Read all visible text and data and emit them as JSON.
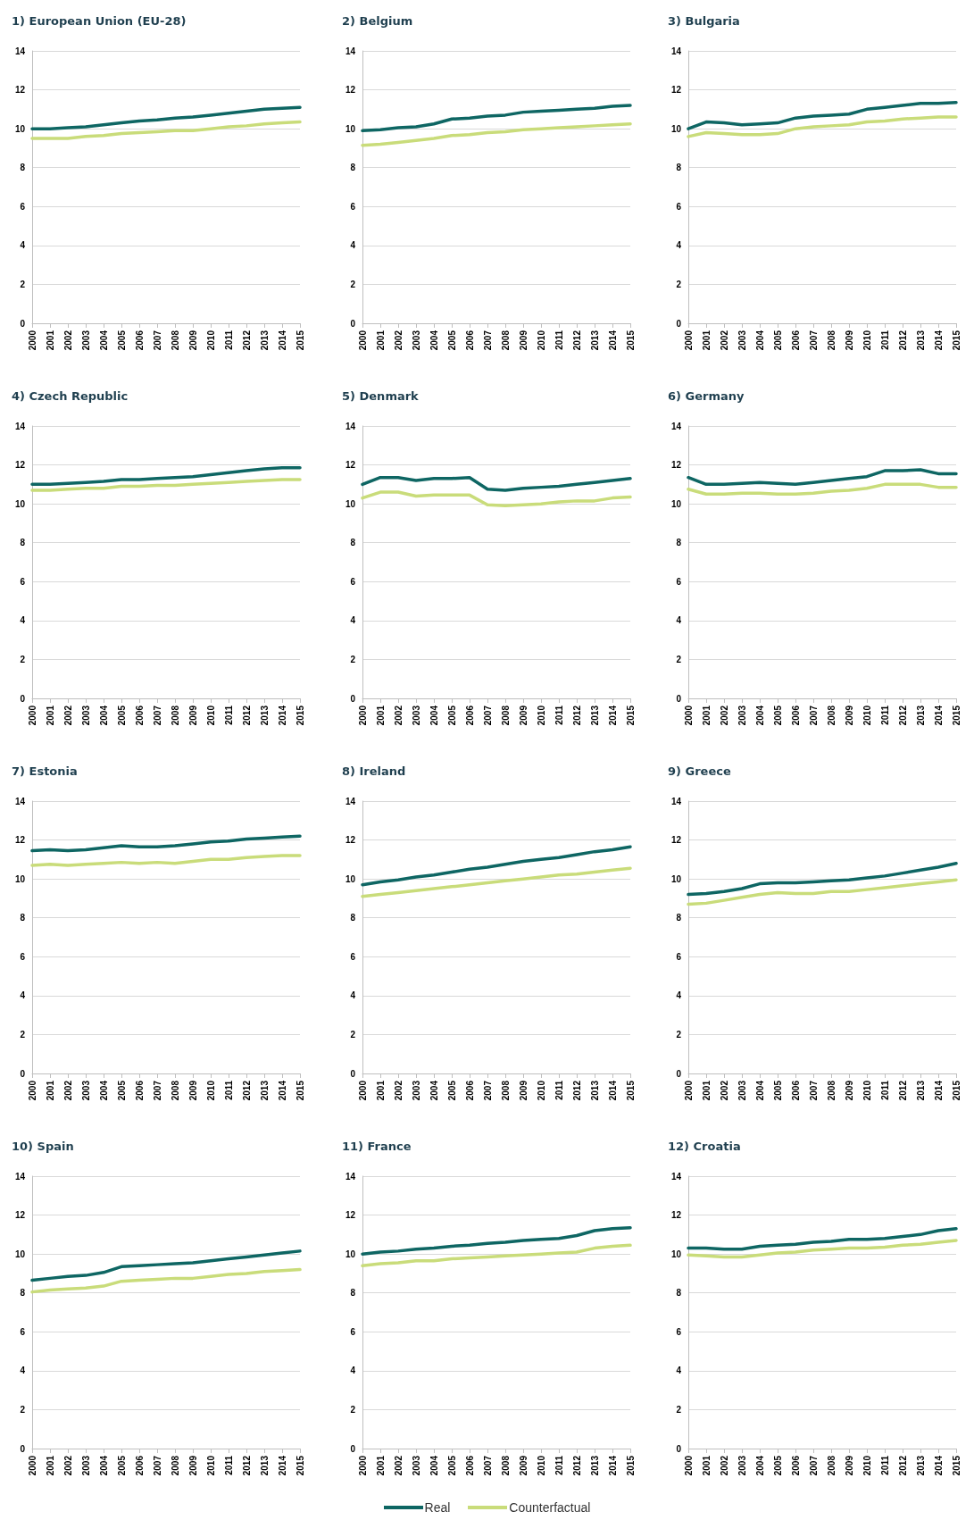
{
  "chart_data": [
    {
      "type": "line",
      "title": "1) European Union (EU-28)",
      "categories": [
        "2000",
        "2001",
        "2002",
        "2003",
        "2004",
        "2005",
        "2006",
        "2007",
        "2008",
        "2009",
        "2010",
        "2011",
        "2012",
        "2013",
        "2014",
        "2015"
      ],
      "ylim": [
        0,
        14
      ],
      "yticks": [
        0,
        2,
        4,
        6,
        8,
        10,
        12,
        14
      ],
      "grid": "y",
      "marker": "none",
      "legend": "bottom",
      "series": [
        {
          "name": "Real",
          "color": "#0e6663",
          "values": [
            10.0,
            10.0,
            10.05,
            10.1,
            10.2,
            10.3,
            10.4,
            10.45,
            10.55,
            10.6,
            10.7,
            10.8,
            10.9,
            11.0,
            11.05,
            11.1
          ]
        },
        {
          "name": "Counterfactual",
          "color": "#c9dc7a",
          "values": [
            9.5,
            9.5,
            9.5,
            9.6,
            9.65,
            9.75,
            9.8,
            9.85,
            9.9,
            9.9,
            10.0,
            10.1,
            10.15,
            10.25,
            10.3,
            10.35
          ]
        }
      ]
    },
    {
      "type": "line",
      "title": "2) Belgium",
      "categories": [
        "2000",
        "2001",
        "2002",
        "2003",
        "2004",
        "2005",
        "2006",
        "2007",
        "2008",
        "2009",
        "2010",
        "2011",
        "2012",
        "2013",
        "2014",
        "2015"
      ],
      "ylim": [
        0,
        14
      ],
      "yticks": [
        0,
        2,
        4,
        6,
        8,
        10,
        12,
        14
      ],
      "grid": "y",
      "marker": "none",
      "series": [
        {
          "color": "#0e6663",
          "values": [
            9.9,
            9.95,
            10.05,
            10.1,
            10.25,
            10.5,
            10.55,
            10.65,
            10.7,
            10.85,
            10.9,
            10.95,
            11.0,
            11.05,
            11.15,
            11.2
          ]
        },
        {
          "color": "#c9dc7a",
          "values": [
            9.15,
            9.2,
            9.3,
            9.4,
            9.5,
            9.65,
            9.7,
            9.8,
            9.85,
            9.95,
            10.0,
            10.05,
            10.1,
            10.15,
            10.2,
            10.25
          ]
        }
      ]
    },
    {
      "type": "line",
      "title": "3) Bulgaria",
      "categories": [
        "2000",
        "2001",
        "2002",
        "2003",
        "2004",
        "2005",
        "2006",
        "2007",
        "2008",
        "2009",
        "2010",
        "2011",
        "2012",
        "2013",
        "2014",
        "2015"
      ],
      "ylim": [
        0,
        14
      ],
      "yticks": [
        0,
        2,
        4,
        6,
        8,
        10,
        12,
        14
      ],
      "grid": "y",
      "marker": "none",
      "series": [
        {
          "color": "#0e6663",
          "values": [
            10.0,
            10.35,
            10.3,
            10.2,
            10.25,
            10.3,
            10.55,
            10.65,
            10.7,
            10.75,
            11.0,
            11.1,
            11.2,
            11.3,
            11.3,
            11.35
          ]
        },
        {
          "color": "#c9dc7a",
          "values": [
            9.6,
            9.8,
            9.75,
            9.7,
            9.7,
            9.75,
            10.0,
            10.1,
            10.15,
            10.2,
            10.35,
            10.4,
            10.5,
            10.55,
            10.6,
            10.6
          ]
        }
      ]
    },
    {
      "type": "line",
      "title": "4) Czech Republic",
      "categories": [
        "2000",
        "2001",
        "2002",
        "2003",
        "2004",
        "2005",
        "2006",
        "2007",
        "2008",
        "2009",
        "2010",
        "2011",
        "2012",
        "2013",
        "2014",
        "2015"
      ],
      "ylim": [
        0,
        14
      ],
      "yticks": [
        0,
        2,
        4,
        6,
        8,
        10,
        12,
        14
      ],
      "grid": "y",
      "marker": "none",
      "series": [
        {
          "color": "#0e6663",
          "values": [
            11.0,
            11.0,
            11.05,
            11.1,
            11.15,
            11.25,
            11.25,
            11.3,
            11.35,
            11.4,
            11.5,
            11.6,
            11.7,
            11.8,
            11.85,
            11.85
          ]
        },
        {
          "color": "#c9dc7a",
          "values": [
            10.7,
            10.7,
            10.75,
            10.8,
            10.8,
            10.9,
            10.9,
            10.95,
            10.95,
            11.0,
            11.05,
            11.1,
            11.15,
            11.2,
            11.25,
            11.25
          ]
        }
      ]
    },
    {
      "type": "line",
      "title": "5) Denmark",
      "categories": [
        "2000",
        "2001",
        "2002",
        "2003",
        "2004",
        "2005",
        "2006",
        "2007",
        "2008",
        "2009",
        "2010",
        "2011",
        "2012",
        "2013",
        "2014",
        "2015"
      ],
      "ylim": [
        0,
        14
      ],
      "yticks": [
        0,
        2,
        4,
        6,
        8,
        10,
        12,
        14
      ],
      "grid": "y",
      "marker": "none",
      "series": [
        {
          "color": "#0e6663",
          "values": [
            11.0,
            11.35,
            11.35,
            11.2,
            11.3,
            11.3,
            11.35,
            10.75,
            10.7,
            10.8,
            10.85,
            10.9,
            11.0,
            11.1,
            11.2,
            11.3
          ]
        },
        {
          "color": "#c9dc7a",
          "values": [
            10.3,
            10.6,
            10.6,
            10.4,
            10.45,
            10.45,
            10.45,
            9.95,
            9.9,
            9.95,
            10.0,
            10.1,
            10.15,
            10.15,
            10.3,
            10.35
          ]
        }
      ]
    },
    {
      "type": "line",
      "title": "6) Germany",
      "categories": [
        "2000",
        "2001",
        "2002",
        "2003",
        "2004",
        "2005",
        "2006",
        "2007",
        "2008",
        "2009",
        "2010",
        "2011",
        "2012",
        "2013",
        "2014",
        "2015"
      ],
      "ylim": [
        0,
        14
      ],
      "yticks": [
        0,
        2,
        4,
        6,
        8,
        10,
        12,
        14
      ],
      "grid": "y",
      "marker": "none",
      "series": [
        {
          "color": "#0e6663",
          "values": [
            11.35,
            11.0,
            11.0,
            11.05,
            11.1,
            11.05,
            11.0,
            11.1,
            11.2,
            11.3,
            11.4,
            11.7,
            11.7,
            11.75,
            11.55,
            11.55
          ]
        },
        {
          "color": "#c9dc7a",
          "values": [
            10.75,
            10.5,
            10.5,
            10.55,
            10.55,
            10.5,
            10.5,
            10.55,
            10.65,
            10.7,
            10.8,
            11.0,
            11.0,
            11.0,
            10.85,
            10.85
          ]
        }
      ]
    },
    {
      "type": "line",
      "title": "7) Estonia",
      "categories": [
        "2000",
        "2001",
        "2002",
        "2003",
        "2004",
        "2005",
        "2006",
        "2007",
        "2008",
        "2009",
        "2010",
        "2011",
        "2012",
        "2013",
        "2014",
        "2015"
      ],
      "ylim": [
        0,
        14
      ],
      "yticks": [
        0,
        2,
        4,
        6,
        8,
        10,
        12,
        14
      ],
      "grid": "y",
      "marker": "none",
      "series": [
        {
          "color": "#0e6663",
          "values": [
            11.45,
            11.5,
            11.45,
            11.5,
            11.6,
            11.7,
            11.65,
            11.65,
            11.7,
            11.8,
            11.9,
            11.95,
            12.05,
            12.1,
            12.15,
            12.2
          ]
        },
        {
          "color": "#c9dc7a",
          "values": [
            10.7,
            10.75,
            10.7,
            10.75,
            10.8,
            10.85,
            10.8,
            10.85,
            10.8,
            10.9,
            11.0,
            11.0,
            11.1,
            11.15,
            11.2,
            11.2
          ]
        }
      ]
    },
    {
      "type": "line",
      "title": "8) Ireland",
      "categories": [
        "2000",
        "2001",
        "2002",
        "2003",
        "2004",
        "2005",
        "2006",
        "2007",
        "2008",
        "2009",
        "2010",
        "2011",
        "2012",
        "2013",
        "2014",
        "2015"
      ],
      "ylim": [
        0,
        14
      ],
      "yticks": [
        0,
        2,
        4,
        6,
        8,
        10,
        12,
        14
      ],
      "grid": "y",
      "marker": "none",
      "series": [
        {
          "color": "#0e6663",
          "values": [
            9.7,
            9.85,
            9.95,
            10.1,
            10.2,
            10.35,
            10.5,
            10.6,
            10.75,
            10.9,
            11.0,
            11.1,
            11.25,
            11.4,
            11.5,
            11.65
          ]
        },
        {
          "color": "#c9dc7a",
          "values": [
            9.1,
            9.2,
            9.3,
            9.4,
            9.5,
            9.6,
            9.7,
            9.8,
            9.9,
            10.0,
            10.1,
            10.2,
            10.25,
            10.35,
            10.45,
            10.55
          ]
        }
      ]
    },
    {
      "type": "line",
      "title": "9) Greece",
      "categories": [
        "2000",
        "2001",
        "2002",
        "2003",
        "2004",
        "2005",
        "2006",
        "2007",
        "2008",
        "2009",
        "2010",
        "2011",
        "2012",
        "2013",
        "2014",
        "2015"
      ],
      "ylim": [
        0,
        14
      ],
      "yticks": [
        0,
        2,
        4,
        6,
        8,
        10,
        12,
        14
      ],
      "grid": "y",
      "marker": "none",
      "series": [
        {
          "color": "#0e6663",
          "values": [
            9.2,
            9.25,
            9.35,
            9.5,
            9.75,
            9.8,
            9.8,
            9.85,
            9.9,
            9.95,
            10.05,
            10.15,
            10.3,
            10.45,
            10.6,
            10.8
          ]
        },
        {
          "color": "#c9dc7a",
          "values": [
            8.7,
            8.75,
            8.9,
            9.05,
            9.2,
            9.3,
            9.25,
            9.25,
            9.35,
            9.35,
            9.45,
            9.55,
            9.65,
            9.75,
            9.85,
            9.95
          ]
        }
      ]
    },
    {
      "type": "line",
      "title": "10) Spain",
      "categories": [
        "2000",
        "2001",
        "2002",
        "2003",
        "2004",
        "2005",
        "2006",
        "2007",
        "2008",
        "2009",
        "2010",
        "2011",
        "2012",
        "2013",
        "2014",
        "2015"
      ],
      "ylim": [
        0,
        14
      ],
      "yticks": [
        0,
        2,
        4,
        6,
        8,
        10,
        12,
        14
      ],
      "grid": "y",
      "marker": "none",
      "series": [
        {
          "color": "#0e6663",
          "values": [
            8.65,
            8.75,
            8.85,
            8.9,
            9.05,
            9.35,
            9.4,
            9.45,
            9.5,
            9.55,
            9.65,
            9.75,
            9.85,
            9.95,
            10.05,
            10.15
          ]
        },
        {
          "color": "#c9dc7a",
          "values": [
            8.05,
            8.15,
            8.2,
            8.25,
            8.35,
            8.6,
            8.65,
            8.7,
            8.75,
            8.75,
            8.85,
            8.95,
            9.0,
            9.1,
            9.15,
            9.2
          ]
        }
      ]
    },
    {
      "type": "line",
      "title": "11) France",
      "categories": [
        "2000",
        "2001",
        "2002",
        "2003",
        "2004",
        "2005",
        "2006",
        "2007",
        "2008",
        "2009",
        "2010",
        "2011",
        "2012",
        "2013",
        "2014",
        "2015"
      ],
      "ylim": [
        0,
        14
      ],
      "yticks": [
        0,
        2,
        4,
        6,
        8,
        10,
        12,
        14
      ],
      "grid": "y",
      "marker": "none",
      "series": [
        {
          "color": "#0e6663",
          "values": [
            10.0,
            10.1,
            10.15,
            10.25,
            10.3,
            10.4,
            10.45,
            10.55,
            10.6,
            10.7,
            10.75,
            10.8,
            10.95,
            11.2,
            11.3,
            11.35
          ]
        },
        {
          "color": "#c9dc7a",
          "values": [
            9.4,
            9.5,
            9.55,
            9.65,
            9.65,
            9.75,
            9.8,
            9.85,
            9.9,
            9.95,
            10.0,
            10.05,
            10.1,
            10.3,
            10.4,
            10.45
          ]
        }
      ]
    },
    {
      "type": "line",
      "title": "12) Croatia",
      "categories": [
        "2000",
        "2001",
        "2002",
        "2003",
        "2004",
        "2005",
        "2006",
        "2007",
        "2008",
        "2009",
        "2010",
        "2011",
        "2012",
        "2013",
        "2014",
        "2015"
      ],
      "ylim": [
        0,
        14
      ],
      "yticks": [
        0,
        2,
        4,
        6,
        8,
        10,
        12,
        14
      ],
      "grid": "y",
      "marker": "none",
      "series": [
        {
          "color": "#0e6663",
          "values": [
            10.3,
            10.3,
            10.25,
            10.25,
            10.4,
            10.45,
            10.5,
            10.6,
            10.65,
            10.75,
            10.75,
            10.8,
            10.9,
            11.0,
            11.2,
            11.3
          ]
        },
        {
          "color": "#c9dc7a",
          "values": [
            9.95,
            9.9,
            9.85,
            9.85,
            9.95,
            10.05,
            10.1,
            10.2,
            10.25,
            10.3,
            10.3,
            10.35,
            10.45,
            10.5,
            10.6,
            10.7
          ]
        }
      ]
    }
  ]
}
